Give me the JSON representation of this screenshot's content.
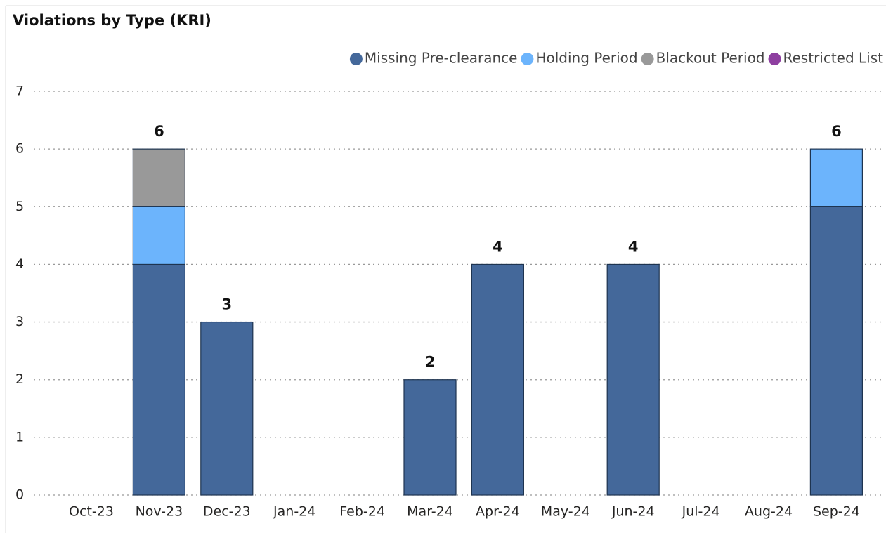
{
  "chart_data": {
    "type": "stacked_bar",
    "title": "Violations by Type (KRI)",
    "categories": [
      "Oct-23",
      "Nov-23",
      "Dec-23",
      "Jan-24",
      "Feb-24",
      "Mar-24",
      "Apr-24",
      "May-24",
      "Jun-24",
      "Jul-24",
      "Aug-24",
      "Sep-24"
    ],
    "series": [
      {
        "name": "Missing Pre-clearance",
        "color": "#44689a",
        "values": [
          0,
          4,
          3,
          0,
          0,
          2,
          4,
          0,
          4,
          0,
          0,
          5
        ]
      },
      {
        "name": "Holding Period",
        "color": "#6cb4fc",
        "values": [
          0,
          1,
          0,
          0,
          0,
          0,
          0,
          0,
          0,
          0,
          0,
          1
        ]
      },
      {
        "name": "Blackout Period",
        "color": "#999999",
        "values": [
          0,
          1,
          0,
          0,
          0,
          0,
          0,
          0,
          0,
          0,
          0,
          0
        ]
      },
      {
        "name": "Restricted List",
        "color": "#8e3fa0",
        "values": [
          0,
          0,
          0,
          0,
          0,
          0,
          0,
          0,
          0,
          0,
          0,
          0
        ]
      }
    ],
    "totals": [
      null,
      6,
      3,
      null,
      null,
      2,
      4,
      null,
      4,
      null,
      null,
      6
    ],
    "ylim": [
      0,
      7
    ],
    "yticks": [
      0,
      1,
      2,
      3,
      4,
      5,
      6,
      7
    ],
    "grid": true,
    "legend": "top-right"
  }
}
